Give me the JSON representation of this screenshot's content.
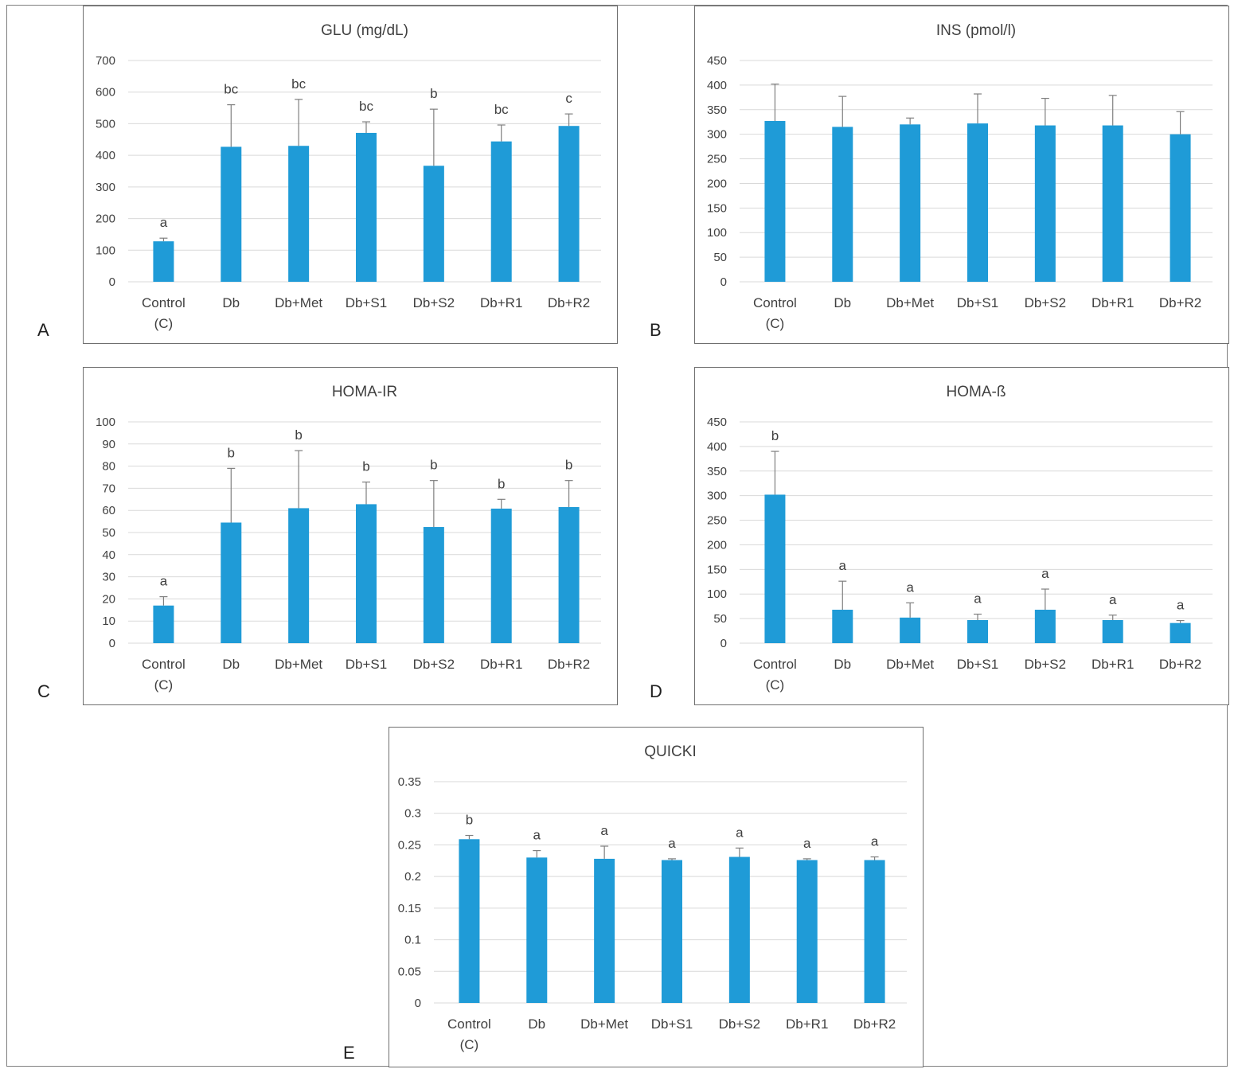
{
  "panel_letters": {
    "A": "A",
    "B": "B",
    "C": "C",
    "D": "D",
    "E": "E"
  },
  "colors": {
    "bar": "#1f9bd7",
    "grid": "#d9d9d9",
    "text": "#404040",
    "error_bar": "#7f7f7f"
  },
  "chart_data": [
    {
      "id": "A",
      "type": "bar",
      "title": "GLU (mg/dL)",
      "xlabel": "",
      "ylabel": "",
      "categories": [
        "Control|(C)",
        "Db",
        "Db+Met",
        "Db+S1",
        "Db+S2",
        "Db+R1",
        "Db+R2"
      ],
      "values": [
        128,
        427,
        430,
        471,
        367,
        444,
        493
      ],
      "errors": [
        10,
        133,
        147,
        35,
        179,
        52,
        38
      ],
      "letters": [
        "a",
        "bc",
        "bc",
        "bc",
        "b",
        "bc",
        "c"
      ],
      "ylim": [
        0,
        700
      ],
      "yticks": [
        "0",
        "100",
        "200",
        "300",
        "400",
        "500",
        "600",
        "700"
      ],
      "grid": true
    },
    {
      "id": "B",
      "type": "bar",
      "title": "INS (pmol/l)",
      "xlabel": "",
      "ylabel": "",
      "categories": [
        "Control|(C)",
        "Db",
        "Db+Met",
        "Db+S1",
        "Db+S2",
        "Db+R1",
        "Db+R2"
      ],
      "values": [
        327,
        315,
        320,
        322,
        318,
        318,
        300
      ],
      "errors": [
        75,
        62,
        13,
        60,
        55,
        61,
        46
      ],
      "letters": [
        "",
        "",
        "",
        "",
        "",
        "",
        ""
      ],
      "ylim": [
        0,
        450
      ],
      "yticks": [
        "0",
        "50",
        "100",
        "150",
        "200",
        "250",
        "300",
        "350",
        "400",
        "450"
      ],
      "grid": true
    },
    {
      "id": "C",
      "type": "bar",
      "title": "HOMA-IR",
      "xlabel": "",
      "ylabel": "",
      "categories": [
        "Control|(C)",
        "Db",
        "Db+Met",
        "Db+S1",
        "Db+S2",
        "Db+R1",
        "Db+R2"
      ],
      "values": [
        17,
        54.5,
        61,
        62.8,
        52.5,
        60.8,
        61.5
      ],
      "errors": [
        4,
        24.5,
        26,
        10,
        21,
        4.2,
        12
      ],
      "letters": [
        "a",
        "b",
        "b",
        "b",
        "b",
        "b",
        "b"
      ],
      "ylim": [
        0,
        100
      ],
      "yticks": [
        "0",
        "10",
        "20",
        "30",
        "40",
        "50",
        "60",
        "70",
        "80",
        "90",
        "100"
      ],
      "grid": true
    },
    {
      "id": "D",
      "type": "bar",
      "title": "HOMA-ß",
      "xlabel": "",
      "ylabel": "",
      "categories": [
        "Control|(C)",
        "Db",
        "Db+Met",
        "Db+S1",
        "Db+S2",
        "Db+R1",
        "Db+R2"
      ],
      "values": [
        302,
        68,
        52,
        47,
        68,
        47,
        41
      ],
      "errors": [
        88,
        58,
        30,
        12,
        42,
        10,
        5
      ],
      "letters": [
        "b",
        "a",
        "a",
        "a",
        "a",
        "a",
        "a"
      ],
      "ylim": [
        0,
        450
      ],
      "yticks": [
        "0",
        "50",
        "100",
        "150",
        "200",
        "250",
        "300",
        "350",
        "400",
        "450"
      ],
      "grid": true
    },
    {
      "id": "E",
      "type": "bar",
      "title": "QUICKI",
      "xlabel": "",
      "ylabel": "",
      "categories": [
        "Control|(C)",
        "Db",
        "Db+Met",
        "Db+S1",
        "Db+S2",
        "Db+R1",
        "Db+R2"
      ],
      "values": [
        0.259,
        0.23,
        0.228,
        0.226,
        0.231,
        0.226,
        0.226
      ],
      "errors": [
        0.006,
        0.011,
        0.02,
        0.002,
        0.014,
        0.002,
        0.005
      ],
      "letters": [
        "b",
        "a",
        "a",
        "a",
        "a",
        "a",
        "a"
      ],
      "ylim": [
        0,
        0.35
      ],
      "yticks": [
        "0",
        "0.05",
        "0.1",
        "0.15",
        "0.2",
        "0.25",
        "0.3",
        "0.35"
      ],
      "grid": true
    }
  ]
}
